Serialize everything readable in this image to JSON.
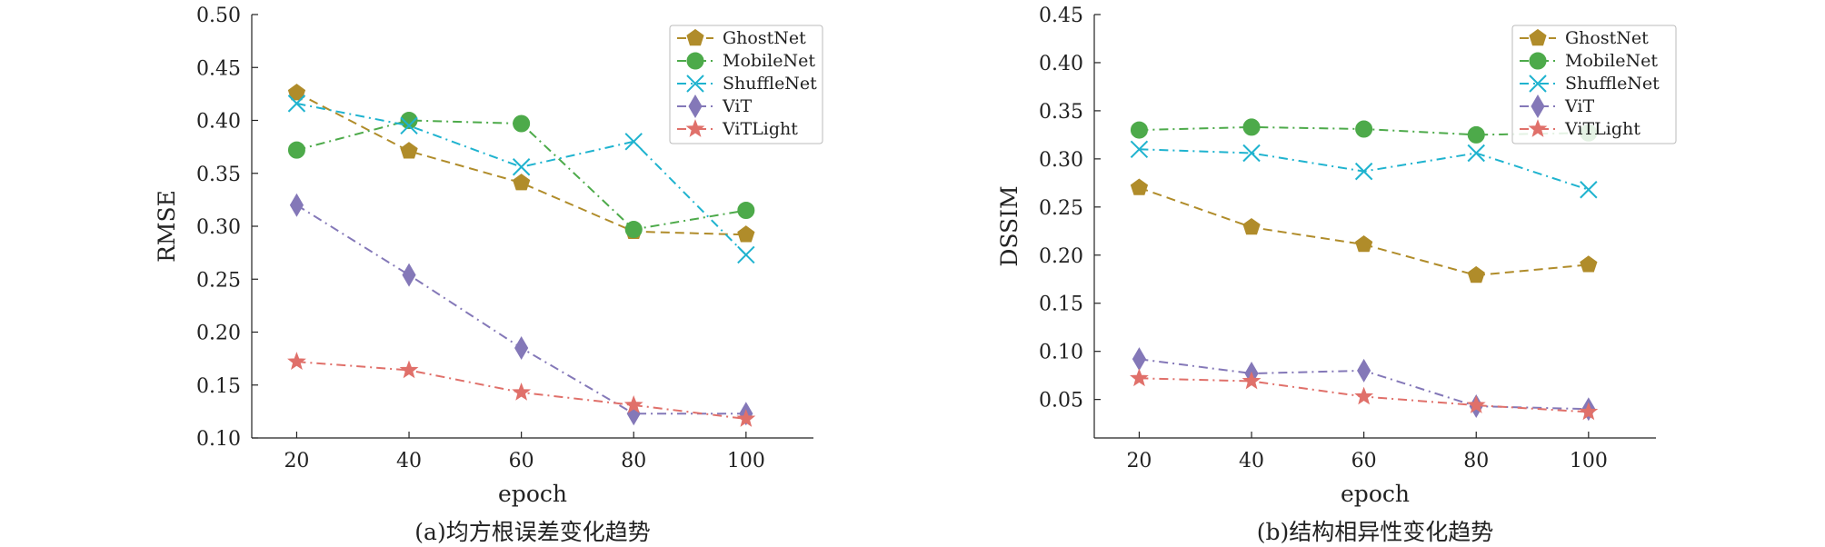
{
  "chart_data": [
    {
      "type": "line",
      "caption": "(a)均方根误差变化趋势",
      "xlabel": "epoch",
      "ylabel": "RMSE",
      "x": [
        20,
        40,
        60,
        80,
        100
      ],
      "xticks": [
        "20",
        "40",
        "60",
        "80",
        "100"
      ],
      "xlim": [
        12,
        112
      ],
      "ylim": [
        0.1,
        0.5
      ],
      "yticks": [
        "0.10",
        "0.15",
        "0.20",
        "0.25",
        "0.30",
        "0.35",
        "0.40",
        "0.45",
        "0.50"
      ],
      "legend": "top-right",
      "grid": false,
      "series": [
        {
          "name": "GhostNet",
          "values": [
            0.426,
            0.371,
            0.341,
            0.295,
            0.292
          ]
        },
        {
          "name": "MobileNet",
          "values": [
            0.372,
            0.4,
            0.397,
            0.297,
            0.315
          ]
        },
        {
          "name": "ShuffleNet",
          "values": [
            0.416,
            0.395,
            0.356,
            0.38,
            0.273
          ]
        },
        {
          "name": "ViT",
          "values": [
            0.32,
            0.254,
            0.185,
            0.123,
            0.123
          ]
        },
        {
          "name": "ViTLight",
          "values": [
            0.172,
            0.164,
            0.143,
            0.131,
            0.118
          ]
        }
      ]
    },
    {
      "type": "line",
      "caption": "(b)结构相异性变化趋势",
      "xlabel": "epoch",
      "ylabel": "DSSIM",
      "x": [
        20,
        40,
        60,
        80,
        100
      ],
      "xticks": [
        "20",
        "40",
        "60",
        "80",
        "100"
      ],
      "xlim": [
        12,
        112
      ],
      "ylim": [
        0.01,
        0.45
      ],
      "yticks": [
        "0.05",
        "0.10",
        "0.15",
        "0.20",
        "0.25",
        "0.30",
        "0.35",
        "0.40",
        "0.45"
      ],
      "legend": "top-right",
      "grid": false,
      "series": [
        {
          "name": "GhostNet",
          "values": [
            0.27,
            0.229,
            0.211,
            0.179,
            0.19
          ]
        },
        {
          "name": "MobileNet",
          "values": [
            0.33,
            0.333,
            0.331,
            0.325,
            0.327
          ]
        },
        {
          "name": "ShuffleNet",
          "values": [
            0.31,
            0.306,
            0.287,
            0.306,
            0.268
          ]
        },
        {
          "name": "ViT",
          "values": [
            0.092,
            0.077,
            0.08,
            0.043,
            0.04
          ]
        },
        {
          "name": "ViTLight",
          "values": [
            0.072,
            0.069,
            0.053,
            0.044,
            0.037
          ]
        }
      ]
    }
  ],
  "styles": {
    "GhostNet": {
      "color": "#b08c2a",
      "marker": "pentagon",
      "dash": "dashed"
    },
    "MobileNet": {
      "color": "#4daa4a",
      "marker": "circle",
      "dash": "dashdot"
    },
    "ShuffleNet": {
      "color": "#1fb3cf",
      "marker": "x",
      "dash": "dashdot"
    },
    "ViT": {
      "color": "#8478b8",
      "marker": "diamond",
      "dash": "dashdot"
    },
    "ViTLight": {
      "color": "#e0706a",
      "marker": "star",
      "dash": "dashdot"
    }
  }
}
